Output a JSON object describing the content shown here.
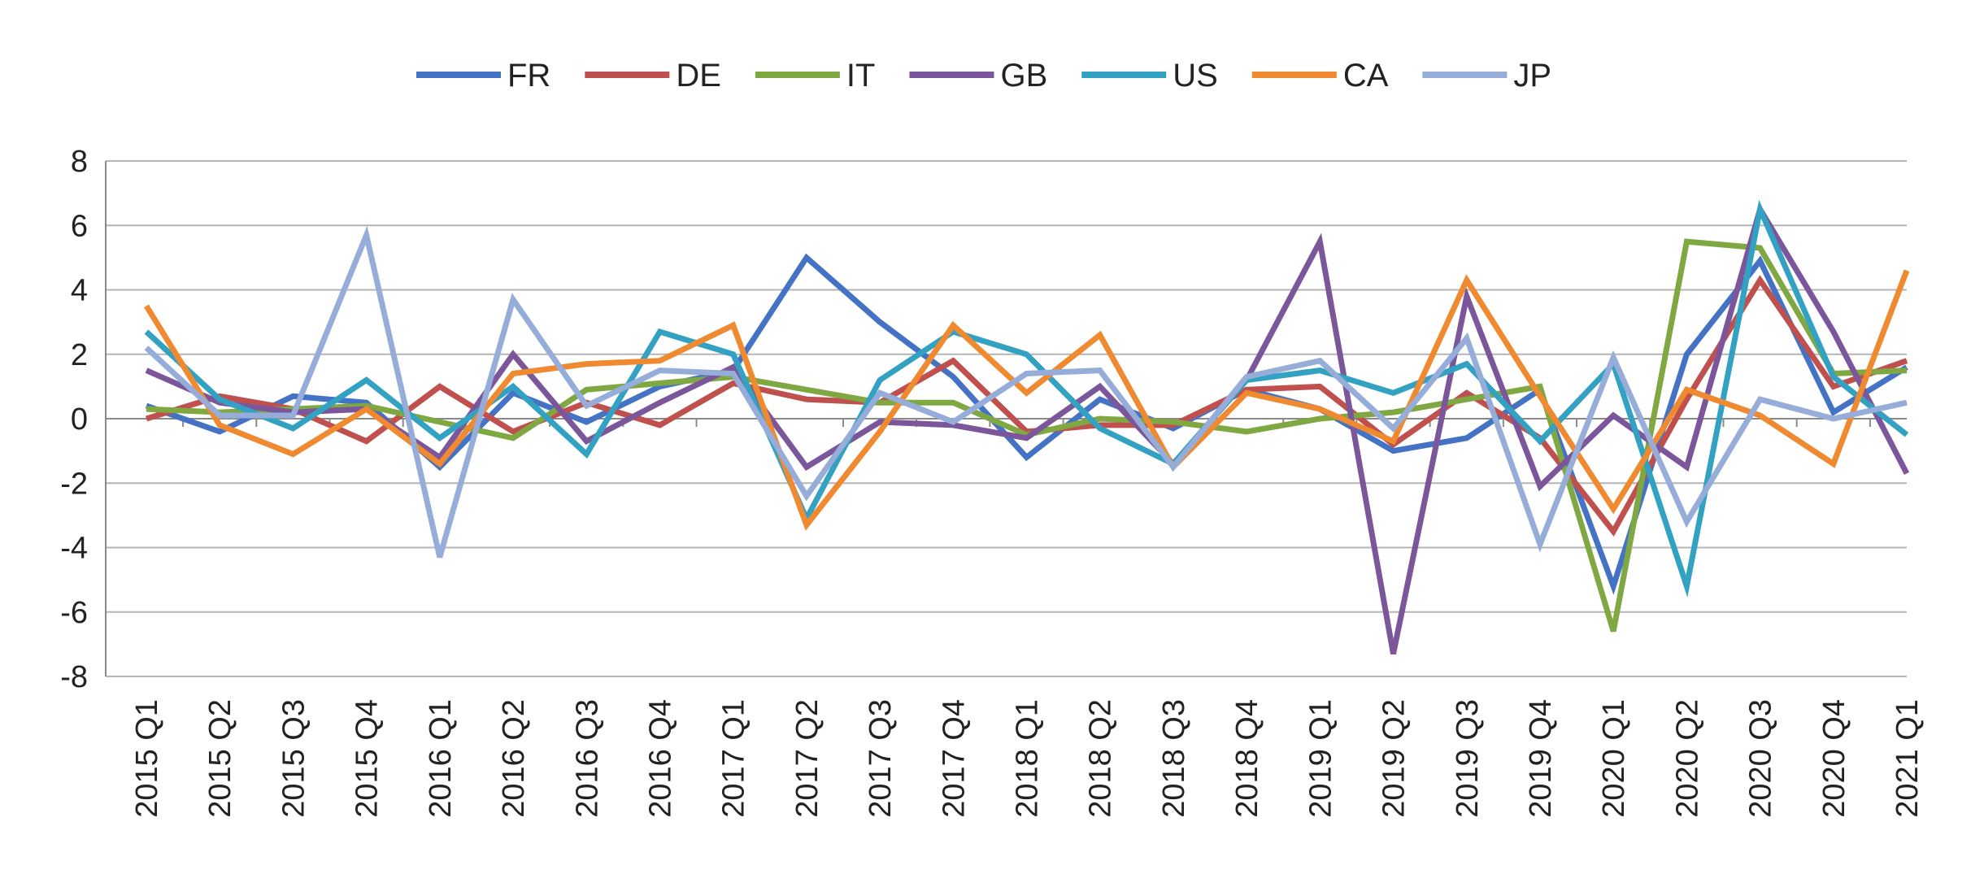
{
  "chart_data": {
    "type": "line",
    "title": "",
    "xlabel": "",
    "ylabel": "",
    "ylim": [
      -8,
      8
    ],
    "yticks": [
      8,
      6,
      4,
      2,
      0,
      -2,
      -4,
      -6,
      -8
    ],
    "ytick_labels": [
      "8",
      "6",
      "4",
      "2",
      "0",
      "-2",
      "-4",
      "-6",
      "-8"
    ],
    "grid": true,
    "legend_position": "top-center",
    "categories": [
      "2015 Q1",
      "2015 Q2",
      "2015 Q3",
      "2015 Q4",
      "2016 Q1",
      "2016 Q2",
      "2016 Q3",
      "2016 Q4",
      "2017 Q1",
      "2017 Q2",
      "2017 Q3",
      "2017 Q4",
      "2018 Q1",
      "2018 Q2",
      "2018 Q3",
      "2018 Q4",
      "2019 Q1",
      "2019 Q2",
      "2019 Q3",
      "2019 Q4",
      "2020 Q1",
      "2020 Q2",
      "2020 Q3",
      "2020 Q4",
      "2021 Q1"
    ],
    "series": [
      {
        "name": "FR",
        "color": "#4472C4",
        "values": [
          0.4,
          -0.4,
          0.7,
          0.5,
          -1.5,
          0.8,
          -0.1,
          1.0,
          1.5,
          5.0,
          3.0,
          1.3,
          -1.2,
          0.6,
          -0.3,
          0.9,
          0.3,
          -1.0,
          -0.6,
          0.9,
          -5.2,
          2.0,
          4.9,
          0.2,
          1.6
        ]
      },
      {
        "name": "DE",
        "color": "#C0504D",
        "values": [
          0.0,
          0.7,
          0.3,
          -0.7,
          1.0,
          -0.4,
          0.5,
          -0.2,
          1.1,
          0.6,
          0.5,
          1.8,
          -0.4,
          -0.2,
          -0.2,
          0.9,
          1.0,
          -0.8,
          0.8,
          -0.6,
          -3.5,
          0.6,
          4.3,
          1.0,
          1.8
        ]
      },
      {
        "name": "IT",
        "color": "#7FA843",
        "values": [
          0.3,
          0.2,
          0.3,
          0.4,
          -0.1,
          -0.6,
          0.9,
          1.1,
          1.3,
          0.9,
          0.5,
          0.5,
          -0.5,
          0.0,
          -0.1,
          -0.4,
          0.0,
          0.2,
          0.6,
          1.0,
          -6.6,
          5.5,
          5.3,
          1.4,
          1.5
        ]
      },
      {
        "name": "GB",
        "color": "#7B569A",
        "values": [
          1.5,
          0.5,
          0.2,
          0.3,
          -1.2,
          2.0,
          -0.7,
          0.5,
          1.6,
          -1.5,
          -0.1,
          -0.2,
          -0.6,
          1.0,
          -1.4,
          1.2,
          5.5,
          -7.3,
          3.8,
          -2.1,
          0.1,
          -1.5,
          6.5,
          2.7,
          -1.7
        ]
      },
      {
        "name": "US",
        "color": "#33A2C2",
        "values": [
          2.7,
          0.6,
          -0.3,
          1.2,
          -0.6,
          1.0,
          -1.1,
          2.7,
          2.0,
          -3.1,
          1.2,
          2.7,
          2.0,
          -0.3,
          -1.4,
          1.2,
          1.5,
          0.8,
          1.7,
          -0.7,
          1.7,
          -5.2,
          6.5,
          1.3,
          -0.5
        ]
      },
      {
        "name": "CA",
        "color": "#F08A30",
        "values": [
          3.5,
          -0.2,
          -1.1,
          0.3,
          -1.4,
          1.4,
          1.7,
          1.8,
          2.9,
          -3.3,
          -0.4,
          2.9,
          0.8,
          2.6,
          -1.5,
          0.8,
          0.3,
          -0.7,
          4.3,
          0.7,
          -2.8,
          0.9,
          0.1,
          -1.4,
          4.6
        ]
      },
      {
        "name": "JP",
        "color": "#95ADD8",
        "values": [
          2.2,
          0.1,
          0.1,
          5.7,
          -4.3,
          3.7,
          0.4,
          1.5,
          1.4,
          -2.4,
          0.8,
          -0.1,
          1.4,
          1.5,
          -1.5,
          1.3,
          1.8,
          -0.3,
          2.5,
          -3.9,
          1.9,
          -3.2,
          0.6,
          0.0,
          0.5
        ]
      }
    ]
  }
}
